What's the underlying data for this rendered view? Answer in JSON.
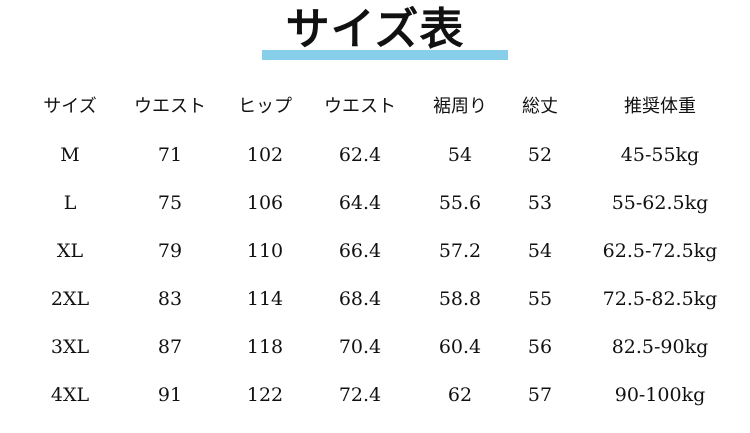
{
  "title": "サイズ表",
  "accent_color": "#87ceeb",
  "headers": [
    "サイズ",
    "ウエスト",
    "ヒップ",
    "ウエスト",
    "裾周り",
    "総丈",
    "推奨体重"
  ],
  "rows": [
    [
      "M",
      "71",
      "102",
      "62.4",
      "54",
      "52",
      "45-55kg"
    ],
    [
      "L",
      "75",
      "106",
      "64.4",
      "55.6",
      "53",
      "55-62.5kg"
    ],
    [
      "XL",
      "79",
      "110",
      "66.4",
      "57.2",
      "54",
      "62.5-72.5kg"
    ],
    [
      "2XL",
      "83",
      "114",
      "68.4",
      "58.8",
      "55",
      "72.5-82.5kg"
    ],
    [
      "3XL",
      "87",
      "118",
      "70.4",
      "60.4",
      "56",
      "82.5-90kg"
    ],
    [
      "4XL",
      "91",
      "122",
      "72.4",
      "62",
      "57",
      "90-100kg"
    ]
  ]
}
